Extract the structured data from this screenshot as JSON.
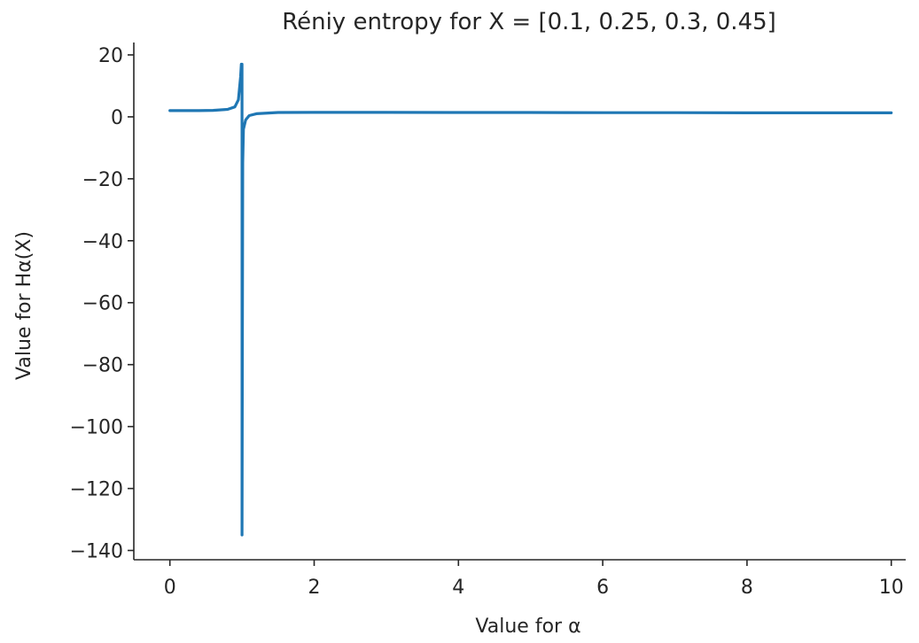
{
  "chart_data": {
    "type": "line",
    "title": "Réniy entropy for X = [0.1, 0.25, 0.3, 0.45]",
    "xlabel": "Value for α",
    "ylabel": "Value for Hα(X)",
    "xlim": [
      -0.5,
      10.2
    ],
    "ylim": [
      -143,
      24
    ],
    "xticks": [
      0,
      2,
      4,
      6,
      8,
      10
    ],
    "yticks": [
      20,
      0,
      -20,
      -40,
      -60,
      -80,
      -100,
      -120,
      -140
    ],
    "xtick_labels": [
      "0",
      "2",
      "4",
      "6",
      "8",
      "10"
    ],
    "ytick_labels": [
      "20",
      "0",
      "−20",
      "−40",
      "−60",
      "−80",
      "−100",
      "−120",
      "−140"
    ],
    "grid": false,
    "series": [
      {
        "color": "#1f77b4",
        "x": [
          0.0,
          0.2,
          0.4,
          0.6,
          0.8,
          0.9,
          0.95,
          0.98,
          0.99,
          1.0,
          1.0,
          1.01,
          1.02,
          1.05,
          1.1,
          1.2,
          1.5,
          2.0,
          3.0,
          4.0,
          5.0,
          6.0,
          7.0,
          8.0,
          9.0,
          10.0
        ],
        "y": [
          2.0,
          2.0,
          2.0,
          2.1,
          2.4,
          3.2,
          5.5,
          13.0,
          17.0,
          17.0,
          -135.0,
          -15.0,
          -4.0,
          -1.0,
          0.4,
          1.0,
          1.4,
          1.45,
          1.45,
          1.4,
          1.4,
          1.35,
          1.35,
          1.3,
          1.3,
          1.3
        ]
      }
    ]
  }
}
